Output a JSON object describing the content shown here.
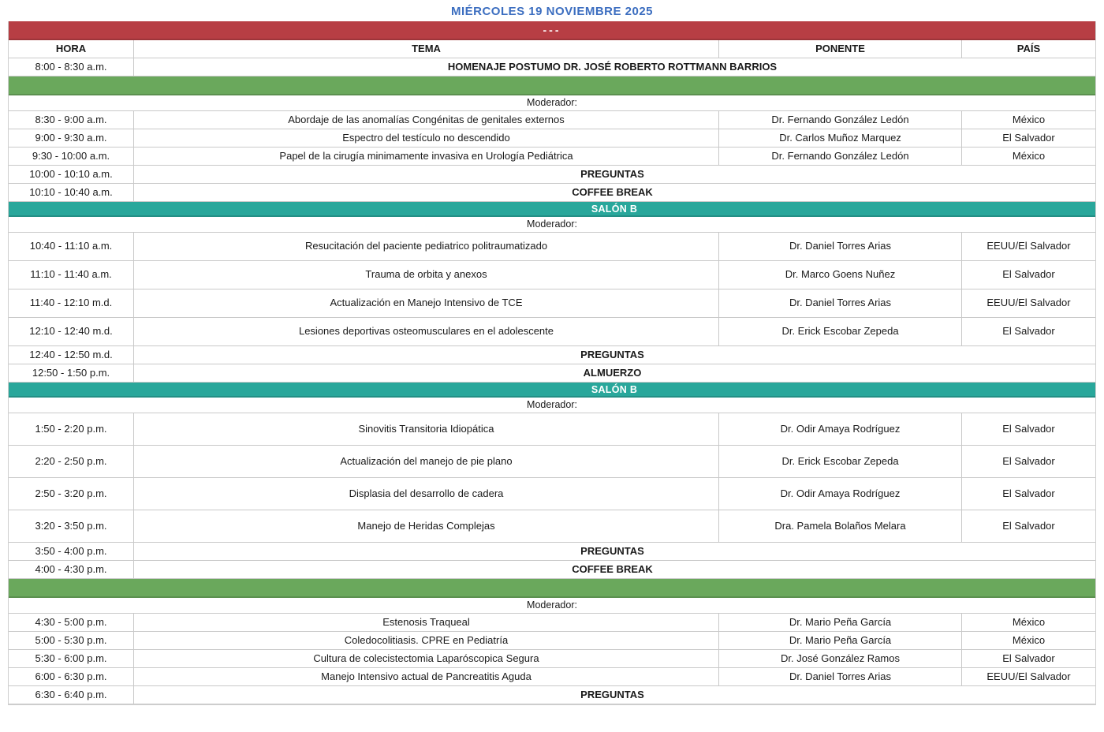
{
  "title": "MIÉRCOLES 19 NOVIEMBRE 2025",
  "colors": {
    "title_blue": "#3c6ec0",
    "band_red": "#b73e44",
    "band_green": "#6aa85c",
    "band_teal": "#29a79b"
  },
  "table": {
    "columns": [
      "HORA",
      "TEMA",
      "PONENTE",
      "PAÍS"
    ],
    "rows": [
      {
        "type": "band",
        "color": "red",
        "label": "---"
      },
      {
        "type": "header"
      },
      {
        "type": "merged",
        "size": "s",
        "time": "8:00 - 8:30 a.m.",
        "text": "HOMENAJE POSTUMO DR. JOSÉ ROBERTO ROTTMANN BARRIOS",
        "bold": true
      },
      {
        "type": "band",
        "color": "green",
        "label": ""
      },
      {
        "type": "moderator",
        "label": "Moderador:"
      },
      {
        "type": "session",
        "size": "s",
        "time": "8:30 - 9:00 a.m.",
        "tema": "Abordaje de las anomalías Congénitas de genitales externos",
        "ponente": "Dr. Fernando González Ledón",
        "pais": "México"
      },
      {
        "type": "session",
        "size": "s",
        "time": "9:00 - 9:30 a.m.",
        "tema": "Espectro del testículo no descendido",
        "ponente": "Dr. Carlos Muñoz Marquez",
        "pais": "El Salvador"
      },
      {
        "type": "session",
        "size": "s",
        "time": "9:30 - 10:00 a.m.",
        "tema": "Papel de la cirugía minimamente invasiva en Urología Pediátrica",
        "ponente": "Dr. Fernando González Ledón",
        "pais": "México"
      },
      {
        "type": "merged",
        "size": "s",
        "time": "10:00 - 10:10 a.m.",
        "text": "PREGUNTAS",
        "bold": true
      },
      {
        "type": "merged",
        "size": "s",
        "time": "10:10 - 10:40 a.m.",
        "text": "COFFEE BREAK",
        "bold": true
      },
      {
        "type": "band",
        "color": "teal",
        "label": "SALÓN B"
      },
      {
        "type": "moderator",
        "label": "Moderador:"
      },
      {
        "type": "session",
        "size": "m",
        "time": "10:40 - 11:10 a.m.",
        "tema": "Resucitación del paciente pediatrico politraumatizado",
        "ponente": "Dr. Daniel Torres Arias",
        "pais": "EEUU/El Salvador"
      },
      {
        "type": "session",
        "size": "m",
        "time": "11:10 - 11:40 a.m.",
        "tema": "Trauma de orbita y anexos",
        "ponente": "Dr. Marco Goens Nuñez",
        "pais": "El Salvador"
      },
      {
        "type": "session",
        "size": "m",
        "time": "11:40 - 12:10 m.d.",
        "tema": "Actualización en Manejo Intensivo de TCE",
        "ponente": "Dr. Daniel Torres Arias",
        "pais": "EEUU/El Salvador"
      },
      {
        "type": "session",
        "size": "m",
        "time": "12:10 - 12:40 m.d.",
        "tema": "Lesiones deportivas osteomusculares en el adolescente",
        "ponente": "Dr. Erick Escobar Zepeda",
        "pais": "El Salvador"
      },
      {
        "type": "merged",
        "size": "s",
        "time": "12:40 - 12:50 m.d.",
        "text": "PREGUNTAS",
        "bold": true
      },
      {
        "type": "merged",
        "size": "s",
        "time": "12:50 - 1:50 p.m.",
        "text": "ALMUERZO",
        "bold": true
      },
      {
        "type": "band",
        "color": "teal",
        "label": "SALÓN B"
      },
      {
        "type": "moderator",
        "label": "Moderador:"
      },
      {
        "type": "session",
        "size": "l",
        "time": "1:50 - 2:20 p.m.",
        "tema": "Sinovitis Transitoria Idiopática",
        "ponente": "Dr. Odir Amaya Rodríguez",
        "pais": "El Salvador"
      },
      {
        "type": "session",
        "size": "l",
        "time": "2:20 - 2:50 p.m.",
        "tema": "Actualización del manejo de pie plano",
        "ponente": "Dr. Erick Escobar Zepeda",
        "pais": "El Salvador"
      },
      {
        "type": "session",
        "size": "l",
        "time": "2:50 - 3:20 p.m.",
        "tema": "Displasia del desarrollo de cadera",
        "ponente": "Dr. Odir Amaya Rodríguez",
        "pais": "El Salvador"
      },
      {
        "type": "session",
        "size": "l",
        "time": "3:20 - 3:50 p.m.",
        "tema": "Manejo de Heridas Complejas",
        "ponente": "Dra. Pamela Bolaños Melara",
        "pais": "El Salvador"
      },
      {
        "type": "merged",
        "size": "s",
        "time": "3:50 - 4:00 p.m.",
        "text": "PREGUNTAS",
        "bold": true
      },
      {
        "type": "merged",
        "size": "s",
        "time": "4:00 - 4:30 p.m.",
        "text": "COFFEE BREAK",
        "bold": true
      },
      {
        "type": "band",
        "color": "green",
        "label": ""
      },
      {
        "type": "moderator",
        "label": "Moderador:"
      },
      {
        "type": "session",
        "size": "s",
        "time": "4:30 - 5:00 p.m.",
        "tema": "Estenosis Traqueal",
        "ponente": "Dr. Mario Peña García",
        "pais": "México"
      },
      {
        "type": "session",
        "size": "s",
        "time": "5:00 - 5:30 p.m.",
        "tema": "Coledocolitiasis. CPRE en Pediatría",
        "ponente": "Dr. Mario Peña García",
        "pais": "México"
      },
      {
        "type": "session",
        "size": "s",
        "time": "5:30 - 6:00 p.m.",
        "tema": "Cultura de colecistectomia Laparóscopica Segura",
        "ponente": "Dr. José González Ramos",
        "pais": "El Salvador"
      },
      {
        "type": "session",
        "size": "s",
        "time": "6:00 - 6:30 p.m.",
        "tema": "Manejo Intensivo actual de Pancreatitis Aguda",
        "ponente": "Dr. Daniel Torres Arias",
        "pais": "EEUU/El Salvador"
      },
      {
        "type": "merged",
        "size": "s",
        "time": "6:30 - 6:40 p.m.",
        "text": "PREGUNTAS",
        "bold": true
      }
    ]
  }
}
